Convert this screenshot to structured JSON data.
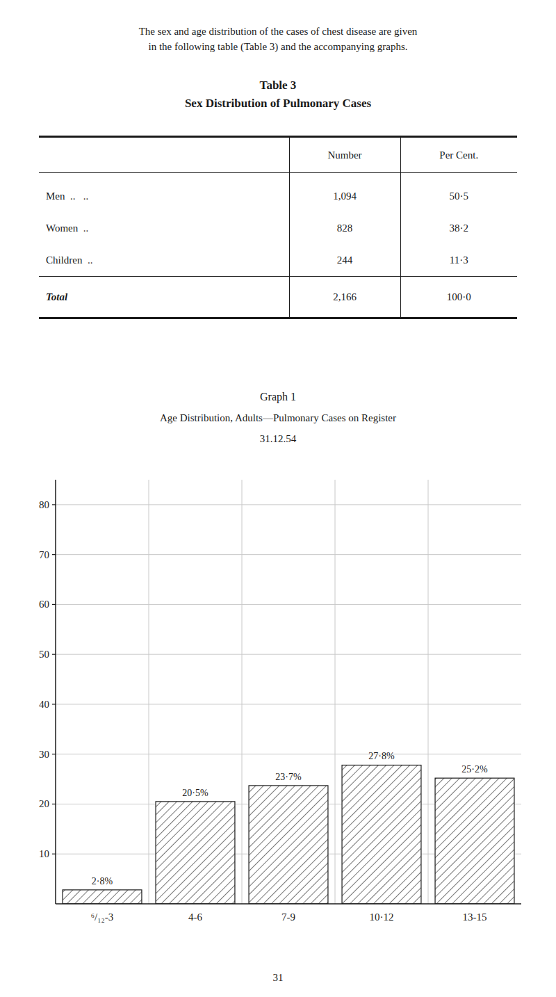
{
  "page_text": [
    "The sex and age distribution of the cases of chest disease are given",
    "in the following table (Table 3) and the accompanying graphs."
  ],
  "table": {
    "title": "Table 3",
    "subtitle": "Sex Distribution of Pulmonary Cases",
    "columns": [
      "Number",
      "Per Cent."
    ],
    "rows": [
      {
        "label": "Men  ..   ..",
        "number": "1,094",
        "percent": "50·5"
      },
      {
        "label": "Women  ..",
        "number": "828",
        "percent": "38·2"
      },
      {
        "label": "Children  ..",
        "number": "244",
        "percent": "11·3"
      }
    ],
    "total": {
      "label": "Total",
      "number": "2,166",
      "percent": "100·0"
    }
  },
  "chart_data": {
    "type": "bar",
    "title": "Graph 1",
    "subtitle": "Age Distribution, Adults—Pulmonary Cases on Register",
    "annotations": [
      "31.12.54"
    ],
    "categories": [
      "⁶/₁₂-3",
      "4-6",
      "7-9",
      "10·12",
      "13-15"
    ],
    "values": [
      2.8,
      20.5,
      23.7,
      27.8,
      25.2
    ],
    "value_labels": [
      "2·8%",
      "20·5%",
      "23·7%",
      "27·8%",
      "25·2%"
    ],
    "data_labels": true,
    "color": "#1a1a1a",
    "ylim": [
      0,
      85
    ],
    "yticks": [
      10,
      20,
      30,
      40,
      50,
      60,
      70,
      80
    ],
    "grid": true
  },
  "page_number": "31"
}
